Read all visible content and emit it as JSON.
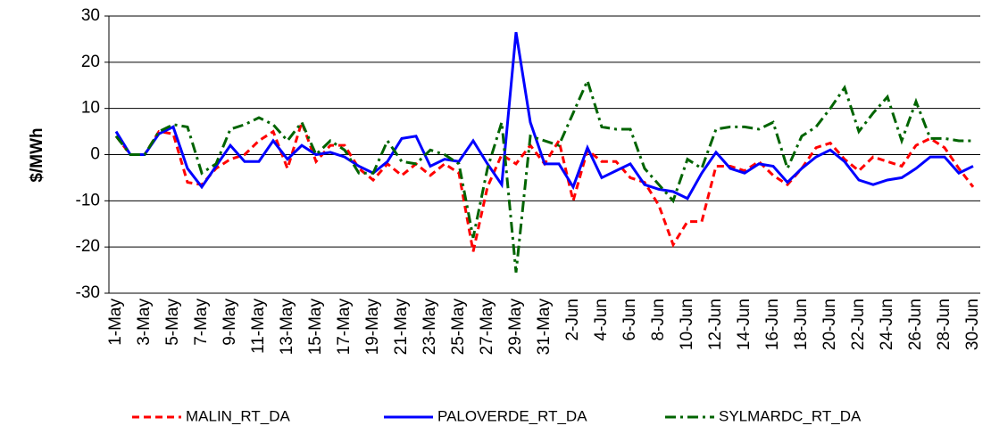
{
  "chart_data": {
    "type": "line",
    "y_label": "$/MWh",
    "categories": [
      "1-May",
      null,
      "3-May",
      null,
      "5-May",
      null,
      "7-May",
      null,
      "9-May",
      null,
      "11-May",
      null,
      "13-May",
      null,
      "15-May",
      null,
      "17-May",
      null,
      "19-May",
      null,
      "21-May",
      null,
      "23-May",
      null,
      "25-May",
      null,
      "27-May",
      null,
      "29-May",
      null,
      "31-May",
      null,
      "2-Jun",
      null,
      "4-Jun",
      null,
      "6-Jun",
      null,
      "8-Jun",
      null,
      "10-Jun",
      null,
      "12-Jun",
      null,
      "14-Jun",
      null,
      "16-Jun",
      null,
      "18-Jun",
      null,
      "20-Jun",
      null,
      "22-Jun",
      null,
      "24-Jun",
      null,
      "26-Jun",
      null,
      "28-Jun",
      null,
      "30-Jun"
    ],
    "series": [
      {
        "name": "MALIN_RT_DA",
        "color": "#ff0000",
        "dash": "dashed",
        "values": [
          4,
          0,
          0,
          5,
          4.5,
          -6,
          -6.5,
          -3,
          -1,
          0,
          3,
          5,
          -3,
          7,
          -1.5,
          2,
          2,
          -3,
          -5.5,
          -2,
          -4.5,
          -2,
          -4.5,
          -2,
          -4,
          -21,
          -7,
          0,
          -2,
          2,
          -2,
          3,
          -10,
          1,
          -1.5,
          -1.5,
          -5,
          -6,
          -11,
          -19.5,
          -14.5,
          -14.5,
          -2.5,
          -2.5,
          -3.5,
          -1.5,
          -4.5,
          -6.5,
          -3,
          1.5,
          2.5,
          -1,
          -3.5,
          -0.5,
          -1.5,
          -2.5,
          2,
          3.5,
          1.5,
          -3,
          -7
        ]
      },
      {
        "name": "PALOVERDE_RT_DA",
        "color": "#0000ff",
        "dash": "solid",
        "values": [
          5,
          0,
          0,
          4.5,
          6,
          -3,
          -7,
          -2.5,
          2,
          -1.5,
          -1.5,
          3,
          -1,
          2,
          0,
          0.5,
          -0.5,
          -2.5,
          -4,
          -1.5,
          3.5,
          4,
          -2.5,
          -1,
          -1.5,
          3,
          -2,
          -6.5,
          26.5,
          7,
          -2,
          -2,
          -7,
          1.5,
          -5,
          -3.5,
          -2,
          -6.5,
          -7.5,
          -8,
          -9.5,
          -4,
          0.5,
          -3,
          -4,
          -2,
          -2.5,
          -6,
          -3,
          -0.5,
          1,
          -1.5,
          -5.5,
          -6.5,
          -5.5,
          -5,
          -3,
          -0.5,
          -0.5,
          -4,
          -2.5
        ]
      },
      {
        "name": "SYLMARDC_RT_DA",
        "color": "#006400",
        "dash": "dashdot",
        "values": [
          4,
          0,
          0,
          5,
          6.5,
          6,
          -4,
          -2,
          5.5,
          6.5,
          8,
          6.5,
          3,
          7,
          0,
          3,
          1,
          -4,
          -4,
          3,
          -1.5,
          -2,
          1,
          0,
          -2,
          -18,
          -3,
          7,
          -25.5,
          4,
          3,
          2,
          9,
          16,
          6,
          5.5,
          5.5,
          -3,
          -6.5,
          -10,
          -1,
          -3,
          5.5,
          6,
          6,
          5.5,
          7,
          -3,
          4,
          6,
          10,
          14.5,
          5,
          9,
          12.5,
          3,
          11.5,
          3.5,
          3.5,
          3,
          3
        ]
      }
    ],
    "ylim": [
      -30,
      30
    ],
    "yticks": [
      -30,
      -20,
      -10,
      0,
      10,
      20,
      30
    ],
    "grid": true,
    "legend": "bottom"
  }
}
